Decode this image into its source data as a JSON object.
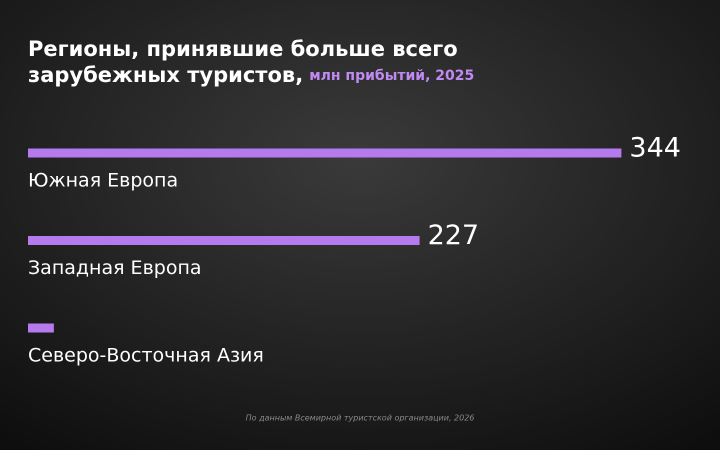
{
  "chart_data": {
    "type": "bar",
    "orientation": "horizontal",
    "title": "Регионы, принявшие больше всего зарубежных туристов,",
    "subtitle": "млн прибытий, 2025",
    "categories": [
      "Южная Европа",
      "Западная Европа",
      "Северо-Восточная Азия"
    ],
    "values": [
      344,
      227,
      15
    ],
    "value_labels": [
      "344",
      "227",
      null
    ],
    "color": "#b57bee",
    "xlim": [
      0,
      400
    ],
    "source": "По данным Всемирной туристской организации, 2026"
  }
}
